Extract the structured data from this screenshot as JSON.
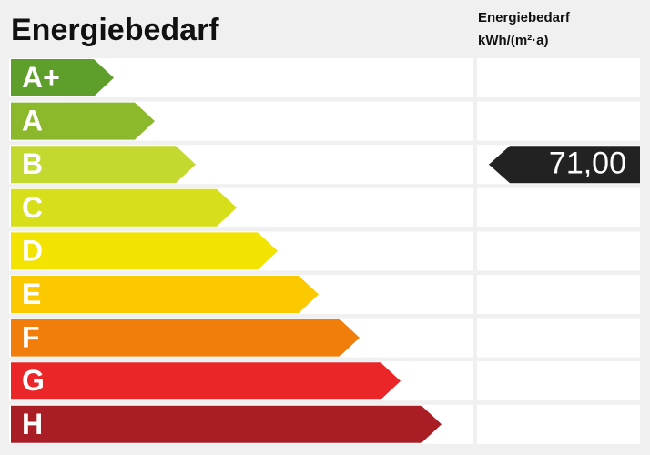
{
  "title": "Energiebedarf",
  "value_header": [
    "Energiebedarf",
    "kWh/(m²·a)"
  ],
  "classes": [
    {
      "label": "A+",
      "color": "#5e9f2c"
    },
    {
      "label": "A",
      "color": "#8cb92b"
    },
    {
      "label": "B",
      "color": "#c3d92f",
      "value": "71,00"
    },
    {
      "label": "C",
      "color": "#d7df1a"
    },
    {
      "label": "D",
      "color": "#f2e300"
    },
    {
      "label": "E",
      "color": "#fcc800"
    },
    {
      "label": "F",
      "color": "#f17d0b"
    },
    {
      "label": "G",
      "color": "#eb2629"
    },
    {
      "label": "H",
      "color": "#a91d25"
    }
  ]
}
